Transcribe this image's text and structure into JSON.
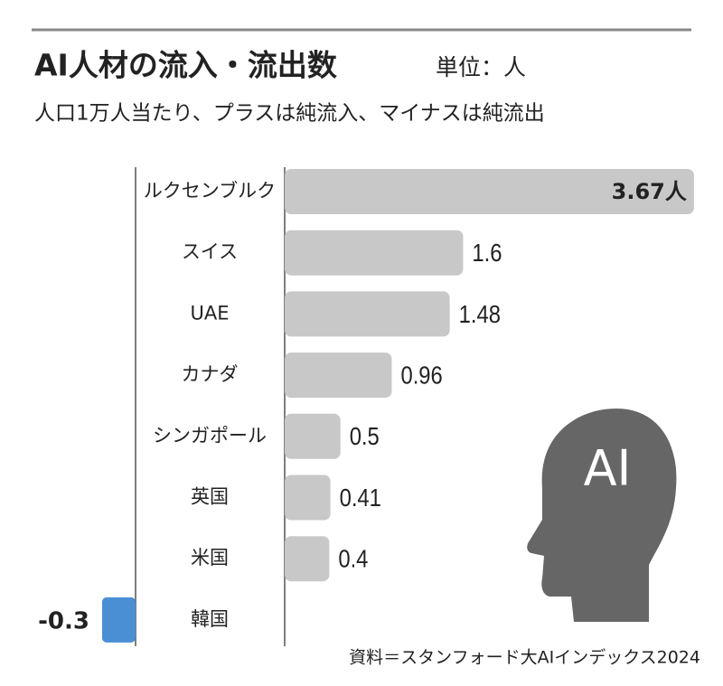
{
  "chart_data": {
    "type": "bar",
    "orientation": "horizontal",
    "title": "AI人材の流入・流出数",
    "unit": "単位：人",
    "subtitle": "人口1万人当たり、プラスは純流入、マイナスは純流出",
    "categories": [
      "ルクセンブルク",
      "スイス",
      "UAE",
      "カナダ",
      "シンガポール",
      "英国",
      "米国",
      "韓国"
    ],
    "values": [
      3.67,
      1.6,
      1.48,
      0.96,
      0.5,
      0.41,
      0.4,
      -0.3
    ],
    "value_labels": [
      "3.67人",
      "1.6",
      "1.48",
      "0.96",
      "0.5",
      "0.41",
      "0.4",
      "-0.3"
    ],
    "color": "#c8c8c8",
    "negative_color": "#4a8fd4",
    "icon_label": "AI",
    "source": "資料＝スタンフォード大AIインデックス2024"
  }
}
